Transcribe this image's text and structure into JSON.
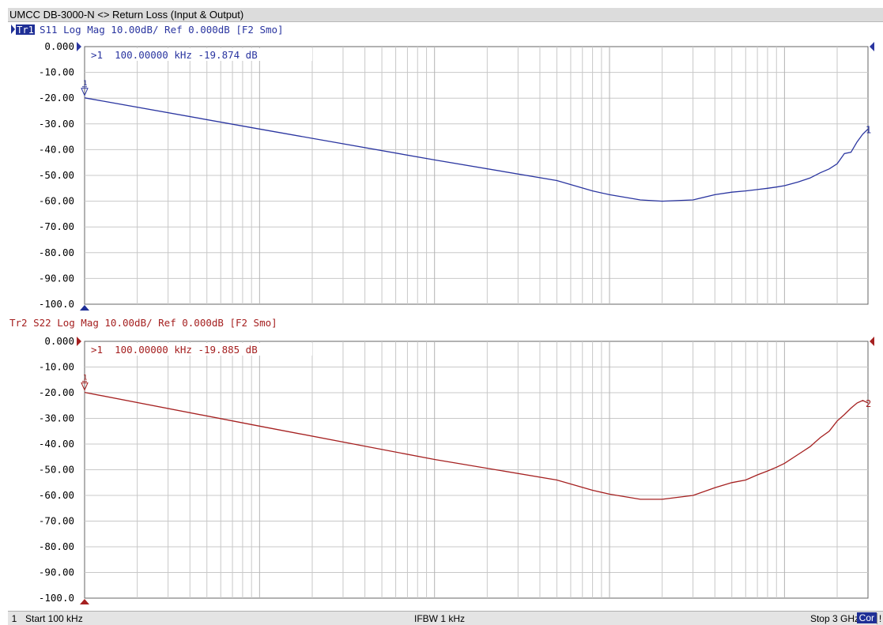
{
  "window": {
    "title": "UMCC DB-3000-N <> Return Loss (Input & Output)"
  },
  "status_bar": {
    "channel": "1",
    "start": "Start 100 kHz",
    "ifbw": "IFBW 1 kHz",
    "stop": "Stop 3 GHz",
    "correction": "Cor",
    "warning": "!"
  },
  "colors": {
    "trace1": "#2a35a0",
    "trace2": "#a52020",
    "grid": "#c8c8c8",
    "axis_text": "#000000"
  },
  "chart_data": [
    {
      "type": "line",
      "title": "",
      "trace_id": "Tr1",
      "header": "S11 Log Mag 10.00dB/ Ref 0.000dB [F2 Smo]",
      "marker_readout": ">1  100.00000 kHz -19.874 dB",
      "active": true,
      "xscale": "log",
      "xlim_hz": [
        100000,
        3000000000
      ],
      "ylim": [
        -100,
        0
      ],
      "yticks": [
        0,
        -10,
        -20,
        -30,
        -40,
        -50,
        -60,
        -70,
        -80,
        -90,
        -100
      ],
      "yticklabels": [
        "0.000",
        "-10.00",
        "-20.00",
        "-30.00",
        "-40.00",
        "-50.00",
        "-60.00",
        "-70.00",
        "-80.00",
        "-90.00",
        "-100.0"
      ],
      "grid": true,
      "end_label": "1",
      "series": [
        {
          "x": [
            100000,
            1000000,
            10000000,
            50000000,
            80000000,
            100000000,
            150000000,
            200000000,
            300000000,
            400000000,
            500000000,
            600000000,
            700000000,
            800000000,
            900000000,
            1000000000,
            1200000000,
            1400000000,
            1600000000,
            1800000000,
            2000000000,
            2200000000,
            2400000000,
            2600000000,
            2800000000,
            3000000000
          ],
          "y": [
            -19.874,
            -32,
            -44,
            -52,
            -56,
            -57.5,
            -59.5,
            -60,
            -59.5,
            -57.5,
            -56.5,
            -56,
            -55.5,
            -55,
            -54.5,
            -54,
            -52.5,
            -51,
            -49,
            -47.5,
            -45.5,
            -41.5,
            -41,
            -37,
            -34,
            -32
          ]
        }
      ]
    },
    {
      "type": "line",
      "title": "",
      "trace_id": "Tr2",
      "header": "S22 Log Mag 10.00dB/ Ref 0.000dB [F2 Smo]",
      "marker_readout": ">1  100.00000 kHz -19.885 dB",
      "active": false,
      "xscale": "log",
      "xlim_hz": [
        100000,
        3000000000
      ],
      "ylim": [
        -100,
        0
      ],
      "yticks": [
        0,
        -10,
        -20,
        -30,
        -40,
        -50,
        -60,
        -70,
        -80,
        -90,
        -100
      ],
      "yticklabels": [
        "0.000",
        "-10.00",
        "-20.00",
        "-30.00",
        "-40.00",
        "-50.00",
        "-60.00",
        "-70.00",
        "-80.00",
        "-90.00",
        "-100.0"
      ],
      "grid": true,
      "end_label": "2",
      "series": [
        {
          "x": [
            100000,
            1000000,
            10000000,
            50000000,
            80000000,
            100000000,
            150000000,
            200000000,
            300000000,
            400000000,
            500000000,
            600000000,
            700000000,
            800000000,
            900000000,
            1000000000,
            1200000000,
            1400000000,
            1600000000,
            1800000000,
            2000000000,
            2200000000,
            2400000000,
            2600000000,
            2800000000,
            3000000000
          ],
          "y": [
            -19.885,
            -33,
            -46,
            -54,
            -58,
            -59.5,
            -61.5,
            -61.5,
            -60,
            -57,
            -55,
            -54,
            -52,
            -50.5,
            -49,
            -47.5,
            -44,
            -41,
            -37.5,
            -35,
            -31,
            -28.5,
            -26,
            -24,
            -23,
            -24
          ]
        }
      ]
    }
  ]
}
